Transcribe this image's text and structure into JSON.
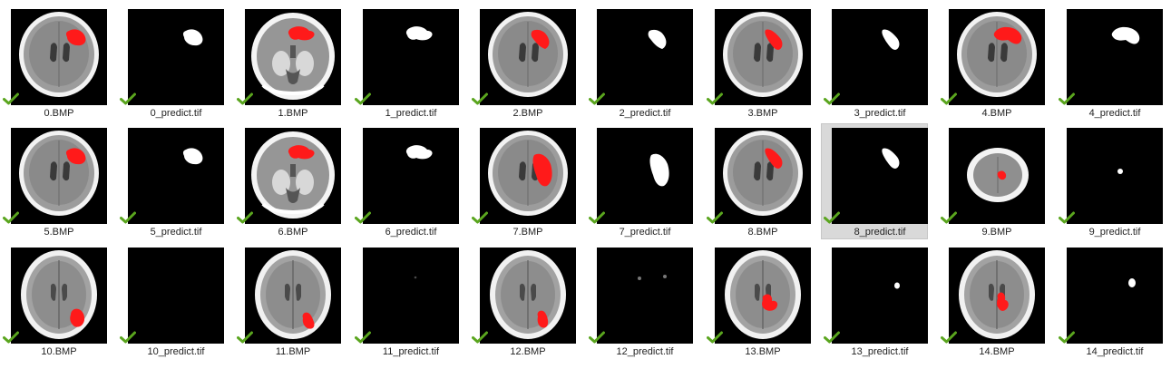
{
  "files": [
    {
      "name": "0.BMP",
      "kind": "ct",
      "scan": "a",
      "lesion": "frontR"
    },
    {
      "name": "0_predict.tif",
      "kind": "mask",
      "lesion": "frontR"
    },
    {
      "name": "1.BMP",
      "kind": "ct",
      "scan": "b",
      "lesion": "frontC"
    },
    {
      "name": "1_predict.tif",
      "kind": "mask",
      "lesion": "frontC"
    },
    {
      "name": "2.BMP",
      "kind": "ct",
      "scan": "a",
      "lesion": "frontR2"
    },
    {
      "name": "2_predict.tif",
      "kind": "mask",
      "lesion": "frontR2"
    },
    {
      "name": "3.BMP",
      "kind": "ct",
      "scan": "a",
      "lesion": "frontR3"
    },
    {
      "name": "3_predict.tif",
      "kind": "mask",
      "lesion": "frontR3"
    },
    {
      "name": "4.BMP",
      "kind": "ct",
      "scan": "a",
      "lesion": "frontBlob"
    },
    {
      "name": "4_predict.tif",
      "kind": "mask",
      "lesion": "frontBlob"
    },
    {
      "name": "5.BMP",
      "kind": "ct",
      "scan": "a",
      "lesion": "frontR"
    },
    {
      "name": "5_predict.tif",
      "kind": "mask",
      "lesion": "frontR"
    },
    {
      "name": "6.BMP",
      "kind": "ct",
      "scan": "b",
      "lesion": "frontC"
    },
    {
      "name": "6_predict.tif",
      "kind": "mask",
      "lesion": "frontC"
    },
    {
      "name": "7.BMP",
      "kind": "ct",
      "scan": "a",
      "lesion": "rightLarge"
    },
    {
      "name": "7_predict.tif",
      "kind": "mask",
      "lesion": "rightLarge"
    },
    {
      "name": "8.BMP",
      "kind": "ct",
      "scan": "a",
      "lesion": "frontR3"
    },
    {
      "name": "8_predict.tif",
      "kind": "mask",
      "lesion": "frontR3",
      "selected": true
    },
    {
      "name": "9.BMP",
      "kind": "ct",
      "scan": "small",
      "lesion": "tiny"
    },
    {
      "name": "9_predict.tif",
      "kind": "mask",
      "lesion": "dot"
    },
    {
      "name": "10.BMP",
      "kind": "ct",
      "scan": "tall",
      "lesion": "rearR"
    },
    {
      "name": "10_predict.tif",
      "kind": "mask",
      "lesion": "none"
    },
    {
      "name": "11.BMP",
      "kind": "ct",
      "scan": "tall",
      "lesion": "rearR2"
    },
    {
      "name": "11_predict.tif",
      "kind": "mask",
      "lesion": "faint"
    },
    {
      "name": "12.BMP",
      "kind": "ct",
      "scan": "tall",
      "lesion": "rearR3"
    },
    {
      "name": "12_predict.tif",
      "kind": "mask",
      "lesion": "dots2"
    },
    {
      "name": "13.BMP",
      "kind": "ct",
      "scan": "tall",
      "lesion": "rearC"
    },
    {
      "name": "13_predict.tif",
      "kind": "mask",
      "lesion": "dot2"
    },
    {
      "name": "14.BMP",
      "kind": "ct",
      "scan": "tall",
      "lesion": "rearC2"
    },
    {
      "name": "14_predict.tif",
      "kind": "mask",
      "lesion": "dot3"
    }
  ],
  "colors": {
    "lesion": "#ff1a1a",
    "check": "#5aa51e",
    "selection": "#d9d9d9"
  },
  "icons": {
    "sync_status": "checkmark-icon"
  }
}
